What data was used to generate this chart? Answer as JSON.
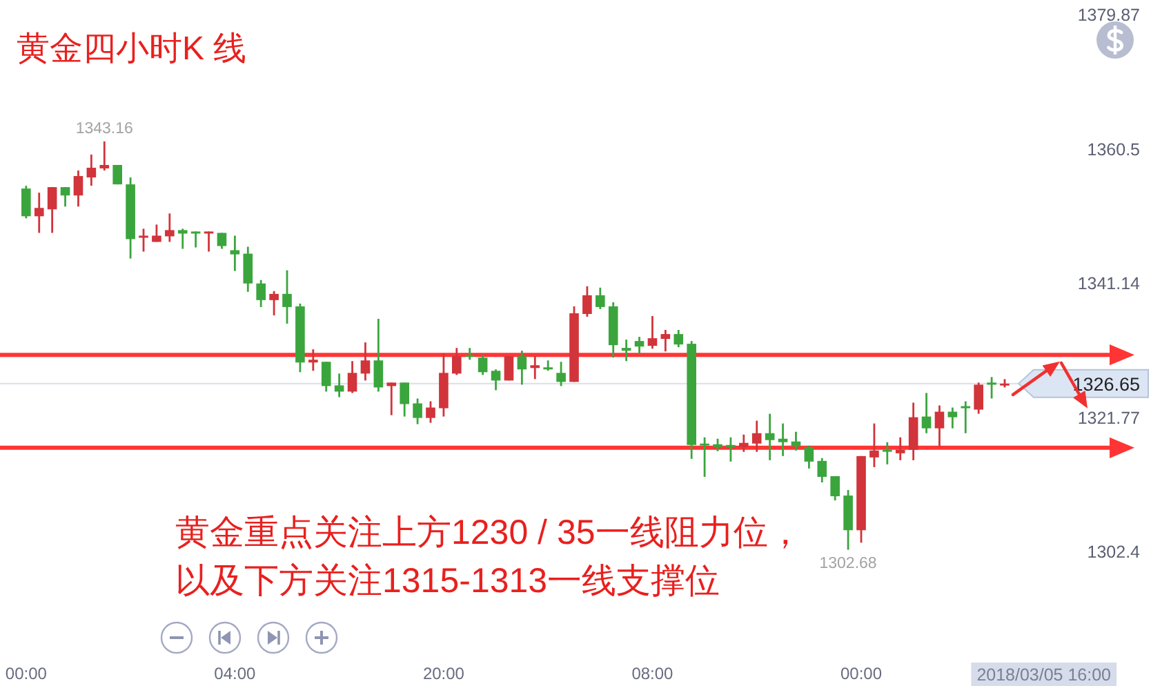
{
  "chart_data": {
    "type": "candlestick",
    "title": "黄金四小时K 线",
    "categories": [
      "00:00",
      null,
      null,
      null,
      null,
      null,
      null,
      null,
      null,
      null,
      null,
      null,
      null,
      null,
      null,
      null,
      "04:00",
      null,
      null,
      null,
      null,
      null,
      null,
      null,
      null,
      null,
      null,
      null,
      null,
      null,
      null,
      null,
      "20:00",
      null,
      null,
      null,
      null,
      null,
      null,
      null,
      null,
      null,
      null,
      null,
      null,
      null,
      null,
      null,
      "08:00",
      null,
      null,
      null,
      null,
      null,
      null,
      null,
      null,
      null,
      null,
      null,
      null,
      null,
      null,
      null,
      "00:00",
      null,
      null,
      null,
      null,
      null,
      null,
      null,
      null,
      null,
      null,
      null
    ],
    "ohlc": [
      [
        1354.8,
        1355.2,
        1350.5,
        1350.8
      ],
      [
        1350.8,
        1354.2,
        1348.4,
        1352.0
      ],
      [
        1351.8,
        1355.0,
        1348.4,
        1355.0
      ],
      [
        1355.0,
        1355.0,
        1352.2,
        1353.8
      ],
      [
        1353.8,
        1357.4,
        1352.2,
        1356.6
      ],
      [
        1356.4,
        1359.7,
        1355.2,
        1357.8
      ],
      [
        1357.7,
        1361.6,
        1357.4,
        1358.2
      ],
      [
        1358.2,
        1358.2,
        1355.4,
        1355.4
      ],
      [
        1355.4,
        1356.4,
        1344.7,
        1347.5
      ],
      [
        1347.7,
        1349.0,
        1345.7,
        1348.0
      ],
      [
        1347.1,
        1349.6,
        1347.1,
        1348.0
      ],
      [
        1347.9,
        1351.2,
        1347.1,
        1348.8
      ],
      [
        1348.8,
        1349.0,
        1346.1,
        1348.3
      ],
      [
        1348.6,
        1348.6,
        1346.3,
        1348.3
      ],
      [
        1348.3,
        1348.6,
        1345.7,
        1348.6
      ],
      [
        1348.4,
        1348.4,
        1346.1,
        1346.5
      ],
      [
        1345.9,
        1348.0,
        1342.9,
        1345.3
      ],
      [
        1345.4,
        1346.4,
        1339.9,
        1341.1
      ],
      [
        1341.1,
        1341.6,
        1337.7,
        1338.7
      ],
      [
        1338.7,
        1340.0,
        1336.5,
        1339.6
      ],
      [
        1339.6,
        1343.0,
        1335.3,
        1337.7
      ],
      [
        1337.8,
        1338.2,
        1328.3,
        1329.7
      ],
      [
        1329.7,
        1331.6,
        1328.5,
        1330.1
      ],
      [
        1329.8,
        1329.8,
        1325.5,
        1326.3
      ],
      [
        1326.4,
        1328.1,
        1324.7,
        1325.5
      ],
      [
        1325.5,
        1329.9,
        1325.3,
        1328.2
      ],
      [
        1328.1,
        1332.6,
        1327.1,
        1330.0
      ],
      [
        1330.0,
        1336.0,
        1325.5,
        1326.1
      ],
      [
        1326.3,
        1326.8,
        1322.1,
        1326.8
      ],
      [
        1326.8,
        1326.8,
        1321.9,
        1323.7
      ],
      [
        1323.8,
        1324.5,
        1320.8,
        1321.7
      ],
      [
        1321.7,
        1324.1,
        1321.0,
        1323.2
      ],
      [
        1323.1,
        1331.0,
        1321.9,
        1328.2
      ],
      [
        1328.1,
        1331.8,
        1327.9,
        1330.6
      ],
      [
        1330.8,
        1331.8,
        1330.1,
        1330.6
      ],
      [
        1330.4,
        1330.8,
        1327.9,
        1328.3
      ],
      [
        1328.5,
        1328.7,
        1325.7,
        1327.1
      ],
      [
        1327.1,
        1330.6,
        1327.1,
        1330.6
      ],
      [
        1330.6,
        1331.4,
        1326.5,
        1328.7
      ],
      [
        1328.9,
        1330.6,
        1327.3,
        1329.3
      ],
      [
        1329.0,
        1330.0,
        1328.5,
        1328.7
      ],
      [
        1328.2,
        1329.8,
        1326.3,
        1326.9
      ],
      [
        1326.9,
        1337.8,
        1326.9,
        1336.8
      ],
      [
        1336.7,
        1340.7,
        1336.3,
        1339.4
      ],
      [
        1339.4,
        1340.5,
        1337.4,
        1337.7
      ],
      [
        1337.8,
        1338.4,
        1330.4,
        1332.2
      ],
      [
        1331.8,
        1333.0,
        1329.9,
        1331.4
      ],
      [
        1332.8,
        1333.4,
        1330.9,
        1332.0
      ],
      [
        1332.1,
        1336.4,
        1331.7,
        1333.2
      ],
      [
        1333.1,
        1334.4,
        1331.3,
        1333.8
      ],
      [
        1333.8,
        1334.4,
        1331.9,
        1332.3
      ],
      [
        1332.4,
        1332.8,
        1315.8,
        1317.8
      ],
      [
        1318.0,
        1318.9,
        1313.2,
        1317.8
      ],
      [
        1317.9,
        1318.7,
        1316.9,
        1317.5
      ],
      [
        1317.8,
        1318.9,
        1315.4,
        1317.5
      ],
      [
        1317.5,
        1319.3,
        1316.8,
        1318.1
      ],
      [
        1318.0,
        1321.3,
        1316.8,
        1319.5
      ],
      [
        1319.5,
        1322.3,
        1315.6,
        1318.5
      ],
      [
        1318.7,
        1320.9,
        1316.2,
        1318.2
      ],
      [
        1318.3,
        1319.7,
        1317.0,
        1317.6
      ],
      [
        1317.5,
        1317.7,
        1314.4,
        1315.4
      ],
      [
        1315.5,
        1315.9,
        1312.4,
        1313.2
      ],
      [
        1313.3,
        1313.3,
        1309.8,
        1310.4
      ],
      [
        1310.5,
        1311.3,
        1302.68,
        1305.5
      ],
      [
        1305.5,
        1316.2,
        1303.7,
        1316.2
      ],
      [
        1316.0,
        1320.9,
        1314.6,
        1317.0
      ],
      [
        1317.1,
        1318.2,
        1315.0,
        1316.9
      ],
      [
        1316.6,
        1318.9,
        1315.6,
        1317.1
      ],
      [
        1317.1,
        1323.9,
        1315.6,
        1321.8
      ],
      [
        1321.9,
        1325.3,
        1319.5,
        1320.2
      ],
      [
        1320.2,
        1323.5,
        1317.6,
        1322.6
      ],
      [
        1322.6,
        1323.2,
        1320.2,
        1321.8
      ],
      [
        1323.4,
        1324.1,
        1319.5,
        1323.1
      ],
      [
        1322.9,
        1326.8,
        1322.3,
        1326.5
      ],
      [
        1326.8,
        1327.6,
        1324.5,
        1326.5
      ],
      [
        1326.5,
        1327.3,
        1326.1,
        1326.65
      ]
    ],
    "colors": [
      "#3ba53d",
      "#d1343a",
      "#d1343a",
      "#3ba53d",
      "#d1343a",
      "#d1343a",
      "#d1343a",
      "#3ba53d",
      "#3ba53d",
      "#d1343a",
      "#d1343a",
      "#d1343a",
      "#3ba53d",
      "#3ba53d",
      "#d1343a",
      "#3ba53d",
      "#3ba53d",
      "#3ba53d",
      "#3ba53d",
      "#d1343a",
      "#3ba53d",
      "#3ba53d",
      "#d1343a",
      "#3ba53d",
      "#3ba53d",
      "#d1343a",
      "#d1343a",
      "#3ba53d",
      "#d1343a",
      "#3ba53d",
      "#3ba53d",
      "#d1343a",
      "#d1343a",
      "#d1343a",
      "#3ba53d",
      "#3ba53d",
      "#3ba53d",
      "#d1343a",
      "#3ba53d",
      "#d1343a",
      "#3ba53d",
      "#3ba53d",
      "#d1343a",
      "#d1343a",
      "#3ba53d",
      "#3ba53d",
      "#3ba53d",
      "#3ba53d",
      "#d1343a",
      "#d1343a",
      "#3ba53d",
      "#3ba53d",
      "#3ba53d",
      "#3ba53d",
      "#3ba53d",
      "#d1343a",
      "#d1343a",
      "#3ba53d",
      "#3ba53d",
      "#3ba53d",
      "#3ba53d",
      "#3ba53d",
      "#3ba53d",
      "#3ba53d",
      "#d1343a",
      "#d1343a",
      "#3ba53d",
      "#d1343a",
      "#d1343a",
      "#3ba53d",
      "#d1343a",
      "#3ba53d",
      "#3ba53d",
      "#d1343a",
      "#3ba53d",
      "#d1343a"
    ],
    "ylim": [
      1302.4,
      1379.87
    ],
    "yticks": [
      1379.87,
      1360.5,
      1341.14,
      1321.77,
      1302.4
    ],
    "ref_lines": [
      {
        "axis": "y",
        "value": 1326.65,
        "label": "1326.65",
        "color": "#dde2ea"
      },
      {
        "axis": "y",
        "value": 1330.8,
        "color": "#ff3535"
      },
      {
        "axis": "y",
        "value": 1317.4,
        "color": "#ff3535"
      }
    ],
    "annotations": [
      "1343.16",
      "1302.68",
      "黄金重点关注上方1230 / 35一线阻力位，",
      "以及下方关注1315-1313一线支撑位",
      "2018/03/05 16:00"
    ]
  }
}
